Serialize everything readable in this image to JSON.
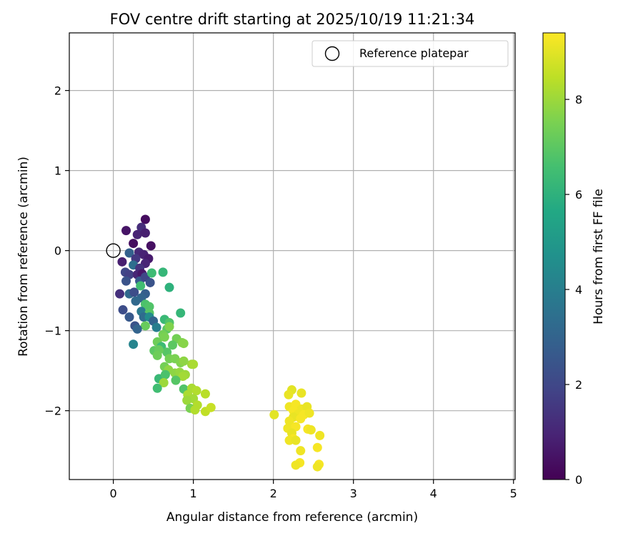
{
  "chart_data": {
    "type": "scatter",
    "title": "FOV centre drift starting at 2025/10/19 11:21:34",
    "xlabel": "Angular distance from reference (arcmin)",
    "ylabel": "Rotation from reference (arcmin)",
    "xlim": [
      -0.55,
      5.02
    ],
    "ylim": [
      -2.86,
      2.72
    ],
    "xticks": [
      "0",
      "1",
      "2",
      "3",
      "4",
      "5"
    ],
    "xtick_values": [
      0,
      1,
      2,
      3,
      4,
      5
    ],
    "yticks": [
      "2",
      "1",
      "0",
      "−1",
      "−2"
    ],
    "ytick_values": [
      2,
      1,
      0,
      -1,
      -2
    ],
    "grid": true,
    "legend": {
      "position": "top-right",
      "label": "Reference platepar"
    },
    "reference_point": {
      "x": 0,
      "y": 0
    },
    "colorbar": {
      "label": "Hours from first FF file",
      "range": [
        0,
        9.4
      ],
      "ticks": [
        "0",
        "2",
        "4",
        "6",
        "8"
      ],
      "tick_values": [
        0,
        2,
        4,
        6,
        8
      ]
    },
    "points": [
      {
        "x": 0.4,
        "y": 0.39,
        "h": 0.3
      },
      {
        "x": 0.16,
        "y": 0.25,
        "h": 0.5
      },
      {
        "x": 0.35,
        "y": 0.29,
        "h": 1.2
      },
      {
        "x": 0.3,
        "y": 0.2,
        "h": 0.9
      },
      {
        "x": 0.4,
        "y": 0.22,
        "h": 0.8
      },
      {
        "x": 0.25,
        "y": 0.09,
        "h": 0.3
      },
      {
        "x": 0.47,
        "y": 0.06,
        "h": 0.4
      },
      {
        "x": 0.32,
        "y": -0.02,
        "h": 1.1
      },
      {
        "x": 0.38,
        "y": -0.05,
        "h": 0.9
      },
      {
        "x": 0.44,
        "y": -0.1,
        "h": 0.7
      },
      {
        "x": 0.2,
        "y": -0.03,
        "h": 2.9
      },
      {
        "x": 0.28,
        "y": -0.1,
        "h": 1.5
      },
      {
        "x": 0.4,
        "y": -0.16,
        "h": 1.0
      },
      {
        "x": 0.11,
        "y": -0.14,
        "h": 0.8
      },
      {
        "x": 0.25,
        "y": -0.18,
        "h": 3.4
      },
      {
        "x": 0.33,
        "y": -0.22,
        "h": 1.4
      },
      {
        "x": 0.15,
        "y": -0.27,
        "h": 2.0
      },
      {
        "x": 0.2,
        "y": -0.3,
        "h": 1.8
      },
      {
        "x": 0.3,
        "y": -0.3,
        "h": 1.0
      },
      {
        "x": 0.36,
        "y": -0.29,
        "h": 0.6
      },
      {
        "x": 0.16,
        "y": -0.38,
        "h": 2.4
      },
      {
        "x": 0.33,
        "y": -0.38,
        "h": 2.6
      },
      {
        "x": 0.4,
        "y": -0.33,
        "h": 2.0
      },
      {
        "x": 0.46,
        "y": -0.4,
        "h": 2.4
      },
      {
        "x": 0.48,
        "y": -0.28,
        "h": 6.4
      },
      {
        "x": 0.62,
        "y": -0.27,
        "h": 6.2
      },
      {
        "x": 0.7,
        "y": -0.46,
        "h": 6.0
      },
      {
        "x": 0.08,
        "y": -0.54,
        "h": 1.3
      },
      {
        "x": 0.2,
        "y": -0.54,
        "h": 3.2
      },
      {
        "x": 0.26,
        "y": -0.52,
        "h": 2.2
      },
      {
        "x": 0.34,
        "y": -0.44,
        "h": 6.5
      },
      {
        "x": 0.4,
        "y": -0.54,
        "h": 2.8
      },
      {
        "x": 0.35,
        "y": -0.59,
        "h": 3.0
      },
      {
        "x": 0.28,
        "y": -0.63,
        "h": 3.2
      },
      {
        "x": 0.4,
        "y": -0.67,
        "h": 6.7
      },
      {
        "x": 0.45,
        "y": -0.7,
        "h": 6.8
      },
      {
        "x": 0.12,
        "y": -0.74,
        "h": 2.2
      },
      {
        "x": 0.35,
        "y": -0.76,
        "h": 3.8
      },
      {
        "x": 0.45,
        "y": -0.78,
        "h": 6.9
      },
      {
        "x": 0.2,
        "y": -0.83,
        "h": 2.6
      },
      {
        "x": 0.38,
        "y": -0.83,
        "h": 3.3
      },
      {
        "x": 0.45,
        "y": -0.83,
        "h": 4.5
      },
      {
        "x": 0.64,
        "y": -0.86,
        "h": 6.3
      },
      {
        "x": 0.7,
        "y": -0.9,
        "h": 6.8
      },
      {
        "x": 0.84,
        "y": -0.78,
        "h": 6.2
      },
      {
        "x": 0.5,
        "y": -0.88,
        "h": 3.0
      },
      {
        "x": 0.27,
        "y": -0.94,
        "h": 2.4
      },
      {
        "x": 0.4,
        "y": -0.94,
        "h": 7.2
      },
      {
        "x": 0.54,
        "y": -0.96,
        "h": 4.0
      },
      {
        "x": 0.67,
        "y": -0.98,
        "h": 7.0
      },
      {
        "x": 0.3,
        "y": -0.98,
        "h": 3.0
      },
      {
        "x": 0.62,
        "y": -1.05,
        "h": 7.4
      },
      {
        "x": 0.7,
        "y": -0.95,
        "h": 7.6
      },
      {
        "x": 0.55,
        "y": -1.14,
        "h": 7.3
      },
      {
        "x": 0.64,
        "y": -1.08,
        "h": 7.5
      },
      {
        "x": 0.79,
        "y": -1.1,
        "h": 7.4
      },
      {
        "x": 0.74,
        "y": -1.18,
        "h": 7.0
      },
      {
        "x": 0.86,
        "y": -1.15,
        "h": 7.6
      },
      {
        "x": 0.88,
        "y": -1.16,
        "h": 7.7
      },
      {
        "x": 0.6,
        "y": -1.2,
        "h": 6.4
      },
      {
        "x": 0.67,
        "y": -1.27,
        "h": 6.9
      },
      {
        "x": 0.51,
        "y": -1.25,
        "h": 7.0
      },
      {
        "x": 0.57,
        "y": -1.24,
        "h": 7.2
      },
      {
        "x": 0.25,
        "y": -1.17,
        "h": 4.2
      },
      {
        "x": 0.55,
        "y": -1.31,
        "h": 7.3
      },
      {
        "x": 0.64,
        "y": -1.45,
        "h": 7.4
      },
      {
        "x": 0.7,
        "y": -1.35,
        "h": 7.4
      },
      {
        "x": 0.77,
        "y": -1.35,
        "h": 7.5
      },
      {
        "x": 0.84,
        "y": -1.4,
        "h": 7.6
      },
      {
        "x": 0.88,
        "y": -1.38,
        "h": 7.8
      },
      {
        "x": 0.98,
        "y": -1.42,
        "h": 8.0
      },
      {
        "x": 1.0,
        "y": -1.42,
        "h": 8.2
      },
      {
        "x": 0.69,
        "y": -1.49,
        "h": 7.8
      },
      {
        "x": 0.77,
        "y": -1.53,
        "h": 7.8
      },
      {
        "x": 0.83,
        "y": -1.52,
        "h": 7.9
      },
      {
        "x": 0.9,
        "y": -1.55,
        "h": 8.0
      },
      {
        "x": 0.87,
        "y": -1.57,
        "h": 8.1
      },
      {
        "x": 0.57,
        "y": -1.6,
        "h": 6.3
      },
      {
        "x": 0.65,
        "y": -1.55,
        "h": 6.7
      },
      {
        "x": 0.78,
        "y": -1.62,
        "h": 6.9
      },
      {
        "x": 0.63,
        "y": -1.65,
        "h": 8.0
      },
      {
        "x": 0.55,
        "y": -1.72,
        "h": 6.5
      },
      {
        "x": 0.88,
        "y": -1.73,
        "h": 6.8
      },
      {
        "x": 0.98,
        "y": -1.72,
        "h": 8.2
      },
      {
        "x": 1.04,
        "y": -1.75,
        "h": 8.3
      },
      {
        "x": 1.15,
        "y": -1.79,
        "h": 8.4
      },
      {
        "x": 0.93,
        "y": -1.8,
        "h": 8.2
      },
      {
        "x": 1.0,
        "y": -1.85,
        "h": 8.1
      },
      {
        "x": 0.92,
        "y": -1.87,
        "h": 8.0
      },
      {
        "x": 1.05,
        "y": -1.93,
        "h": 8.3
      },
      {
        "x": 0.96,
        "y": -1.97,
        "h": 7.5
      },
      {
        "x": 1.02,
        "y": -1.99,
        "h": 8.3
      },
      {
        "x": 1.15,
        "y": -2.01,
        "h": 8.5
      },
      {
        "x": 1.22,
        "y": -1.96,
        "h": 8.6
      },
      {
        "x": 2.23,
        "y": -1.74,
        "h": 9.0
      },
      {
        "x": 2.19,
        "y": -1.8,
        "h": 9.1
      },
      {
        "x": 2.35,
        "y": -1.78,
        "h": 9.1
      },
      {
        "x": 2.2,
        "y": -1.95,
        "h": 9.2
      },
      {
        "x": 2.28,
        "y": -1.92,
        "h": 9.3
      },
      {
        "x": 2.35,
        "y": -1.98,
        "h": 9.2
      },
      {
        "x": 2.42,
        "y": -1.95,
        "h": 9.1
      },
      {
        "x": 2.25,
        "y": -2.0,
        "h": 9.3
      },
      {
        "x": 2.31,
        "y": -2.04,
        "h": 9.2
      },
      {
        "x": 2.38,
        "y": -2.05,
        "h": 9.3
      },
      {
        "x": 2.45,
        "y": -2.03,
        "h": 9.2
      },
      {
        "x": 2.01,
        "y": -2.05,
        "h": 9.0
      },
      {
        "x": 2.25,
        "y": -2.08,
        "h": 9.1
      },
      {
        "x": 2.34,
        "y": -2.1,
        "h": 9.3
      },
      {
        "x": 2.2,
        "y": -2.13,
        "h": 9.2
      },
      {
        "x": 2.18,
        "y": -2.22,
        "h": 9.2
      },
      {
        "x": 2.28,
        "y": -2.2,
        "h": 9.3
      },
      {
        "x": 2.23,
        "y": -2.28,
        "h": 9.1
      },
      {
        "x": 2.43,
        "y": -2.23,
        "h": 9.3
      },
      {
        "x": 2.47,
        "y": -2.24,
        "h": 9.2
      },
      {
        "x": 2.58,
        "y": -2.31,
        "h": 9.2
      },
      {
        "x": 2.25,
        "y": -2.35,
        "h": 9.3
      },
      {
        "x": 2.2,
        "y": -2.37,
        "h": 9.2
      },
      {
        "x": 2.28,
        "y": -2.37,
        "h": 9.1
      },
      {
        "x": 2.55,
        "y": -2.46,
        "h": 9.3
      },
      {
        "x": 2.34,
        "y": -2.5,
        "h": 9.2
      },
      {
        "x": 2.33,
        "y": -2.65,
        "h": 9.3
      },
      {
        "x": 2.28,
        "y": -2.68,
        "h": 9.2
      },
      {
        "x": 2.57,
        "y": -2.67,
        "h": 9.3
      },
      {
        "x": 2.55,
        "y": -2.7,
        "h": 9.2
      }
    ]
  }
}
